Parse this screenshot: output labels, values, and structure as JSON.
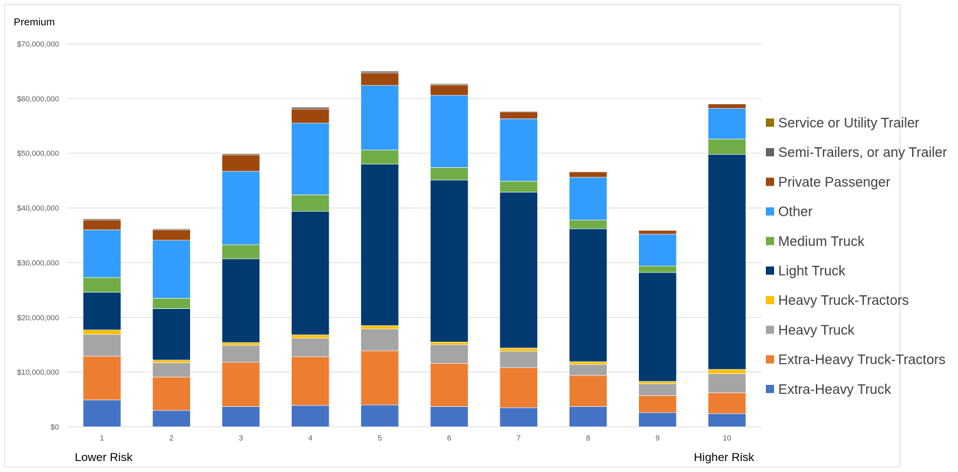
{
  "chart_data": {
    "type": "bar",
    "stacked": true,
    "ylabel": "Premium",
    "ylim": [
      0,
      70000000
    ],
    "ytick_step": 10000000,
    "ytick_labels": [
      "$0",
      "$10,000,000",
      "$20,000,000",
      "$30,000,000",
      "$40,000,000",
      "$50,000,000",
      "$60,000,000",
      "$70,000,000"
    ],
    "categories": [
      "1",
      "2",
      "3",
      "4",
      "5",
      "6",
      "7",
      "8",
      "9",
      "10"
    ],
    "low_label": "Lower Risk",
    "high_label": "Higher Risk",
    "grid": true,
    "legend_position": "right",
    "series": [
      {
        "name": "Extra-Heavy Truck",
        "color": "#4472C4",
        "values": [
          4900000,
          3000000,
          3700000,
          3900000,
          4000000,
          3700000,
          3500000,
          3700000,
          2600000,
          2400000
        ]
      },
      {
        "name": "Extra-Heavy Truck-Tractors",
        "color": "#ED7D31",
        "values": [
          8000000,
          6100000,
          8100000,
          8900000,
          9900000,
          7900000,
          7300000,
          5700000,
          3100000,
          3800000
        ]
      },
      {
        "name": "Heavy Truck",
        "color": "#A5A5A5",
        "values": [
          4000000,
          2600000,
          3100000,
          3400000,
          4000000,
          3400000,
          3000000,
          2000000,
          2200000,
          3500000
        ]
      },
      {
        "name": "Heavy Truck-Tractors",
        "color": "#FFC000",
        "values": [
          800000,
          500000,
          500000,
          600000,
          600000,
          500000,
          600000,
          500000,
          400000,
          800000
        ]
      },
      {
        "name": "Light Truck",
        "color": "#003A70",
        "values": [
          6900000,
          9400000,
          15300000,
          22600000,
          29500000,
          29600000,
          28500000,
          24300000,
          19900000,
          39300000
        ]
      },
      {
        "name": "Medium Truck",
        "color": "#70AD47",
        "values": [
          2700000,
          1900000,
          2600000,
          3000000,
          2600000,
          2300000,
          2000000,
          1600000,
          1200000,
          2800000
        ]
      },
      {
        "name": "Other",
        "color": "#339CFF",
        "values": [
          8700000,
          10600000,
          13400000,
          13100000,
          11800000,
          13200000,
          11400000,
          7800000,
          5800000,
          5600000
        ]
      },
      {
        "name": "Private Passenger",
        "color": "#9E480E",
        "values": [
          1800000,
          1900000,
          3000000,
          2600000,
          2300000,
          1900000,
          1300000,
          1000000,
          700000,
          800000
        ]
      },
      {
        "name": "Semi-Trailers, or any Trailer",
        "color": "#636363",
        "values": [
          200000,
          200000,
          200000,
          300000,
          300000,
          200000,
          100000,
          100000,
          100000,
          0
        ]
      },
      {
        "name": "Service or Utility Trailer",
        "color": "#997300",
        "values": [
          100000,
          50000,
          100000,
          100000,
          100000,
          100000,
          50000,
          50000,
          50000,
          0
        ]
      }
    ]
  }
}
